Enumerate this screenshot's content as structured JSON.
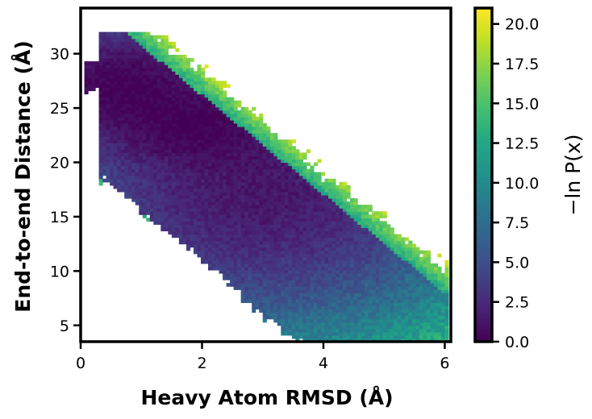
{
  "chart_data": {
    "type": "heatmap",
    "title": "",
    "xlabel": "Heavy Atom RMSD (Å)",
    "ylabel": "End-to-end Distance (Å)",
    "xlim": [
      0,
      6.1
    ],
    "ylim": [
      3.5,
      34.2
    ],
    "xticks": [
      0,
      2,
      4,
      6
    ],
    "xtick_labels": [
      "0",
      "2",
      "4",
      "6"
    ],
    "yticks": [
      5,
      10,
      15,
      20,
      25,
      30
    ],
    "ytick_labels": [
      "5",
      "10",
      "15",
      "20",
      "25",
      "30"
    ],
    "colormap": "viridis",
    "colorbar": {
      "label": "−ln P(x)",
      "range": [
        0,
        21
      ],
      "ticks": [
        0,
        2.5,
        5,
        7.5,
        10,
        12.5,
        15,
        17.5,
        20
      ],
      "tick_labels": [
        "0.0",
        "2.5",
        "5.0",
        "7.5",
        "10.0",
        "12.5",
        "15.0",
        "17.5",
        "20.0"
      ]
    },
    "grid": false,
    "minimum": {
      "x": 0.7,
      "y": 27.0,
      "value": 0.0
    },
    "secondary_basin": {
      "x": 1.9,
      "y": 23.5,
      "value": 0.5
    },
    "bin_width_x": 0.06,
    "bin_width_y": 0.3,
    "description_regions": [
      {
        "region": "low-energy basin",
        "x_range": [
          0.3,
          3.0
        ],
        "y_range": [
          20,
          29
        ],
        "value_range": [
          0,
          3
        ]
      },
      {
        "region": "intermediate band",
        "x_range": [
          2.0,
          4.5
        ],
        "y_range": [
          10,
          20
        ],
        "value_range": [
          5,
          10
        ]
      },
      {
        "region": "high-energy edge",
        "x_range": [
          4.5,
          6.0
        ],
        "y_range": [
          4,
          22
        ],
        "value_range": [
          12,
          21
        ]
      }
    ]
  }
}
